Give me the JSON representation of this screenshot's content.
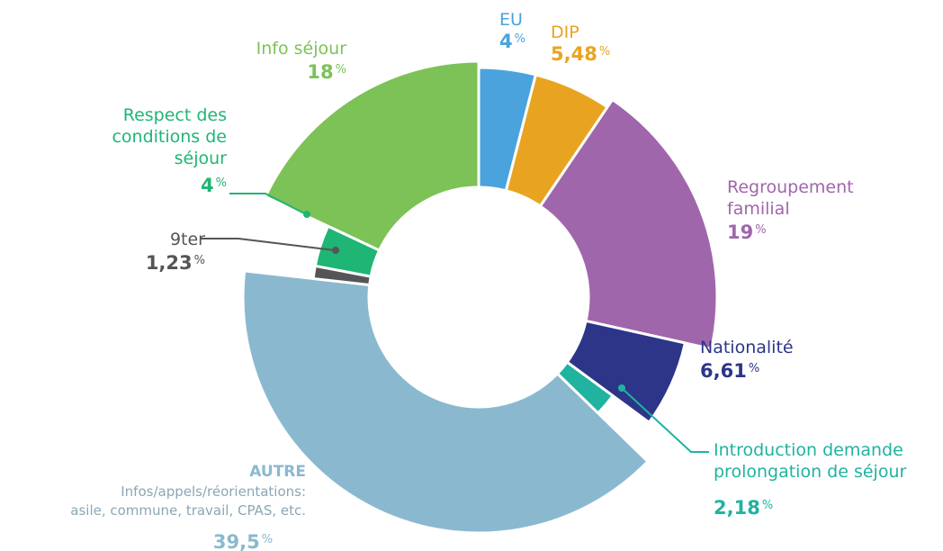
{
  "chart_data": {
    "type": "donut",
    "categories": [
      "EU",
      "DIP",
      "Regroupement familial",
      "Nationalité",
      "Introduction demande prolongation de séjour",
      "AUTRE",
      "9ter",
      "Respect des conditions de séjour",
      "Info séjour"
    ],
    "values": [
      4,
      5.48,
      19,
      6.61,
      2.18,
      39.5,
      1.23,
      4,
      18
    ],
    "value_labels": [
      "4",
      "5,48",
      "19",
      "6,61",
      "2,18",
      "39,5",
      "1,23",
      "4",
      "18"
    ],
    "unit": "%",
    "colors": [
      "#4aa3dc",
      "#e8a420",
      "#a066ab",
      "#2d3589",
      "#1fb3a0",
      "#8ab9cf",
      "#555555",
      "#1fb574",
      "#7cc257"
    ],
    "annotation": [
      "Infos/appels/réorientations:",
      "asile, commune, travail, CPAS, etc."
    ]
  }
}
